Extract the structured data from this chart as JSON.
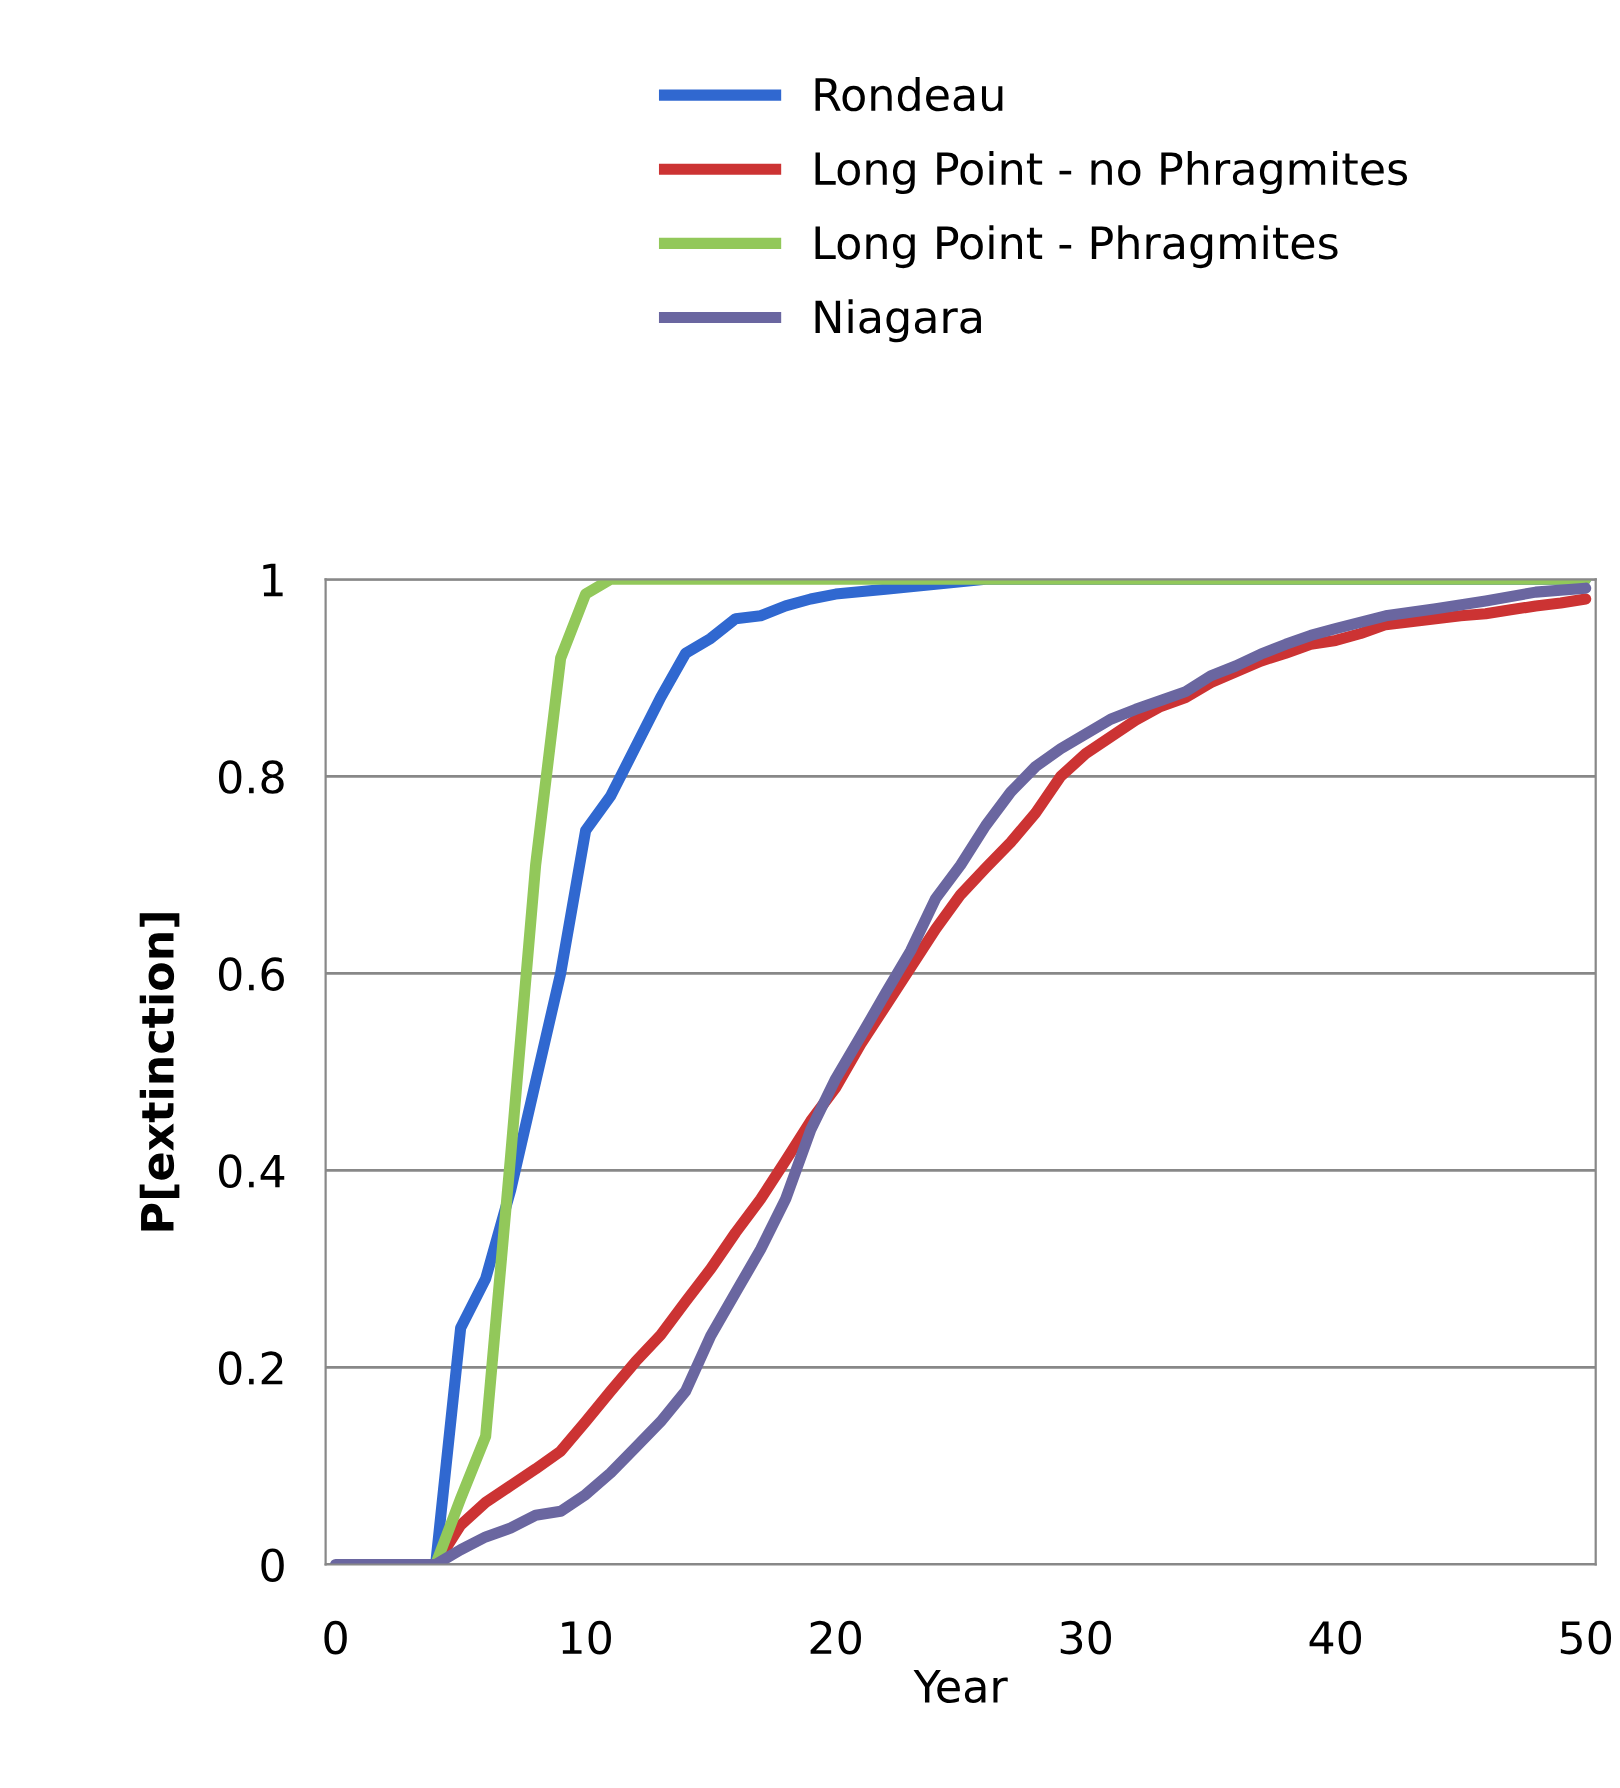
{
  "chart_data": {
    "type": "line",
    "xlabel": "Year",
    "ylabel": "P[extinction]",
    "xlim": [
      -0.4,
      50.4
    ],
    "xticks": [
      0,
      10,
      20,
      30,
      40,
      50
    ],
    "ylim": [
      0,
      1
    ],
    "yticks": [
      0,
      0.2,
      0.4,
      0.6,
      0.8,
      1
    ],
    "grid": "y",
    "legend": "top",
    "marker": "none",
    "line_style": "solid",
    "series": [
      {
        "name": "Rondeau",
        "color": "#3068d0",
        "x": [
          4,
          5,
          6,
          7,
          8,
          9,
          10,
          11,
          12,
          13,
          14,
          15,
          16,
          17,
          18,
          19,
          20,
          22,
          24,
          26,
          50
        ],
        "values": [
          0,
          0.24,
          0.29,
          0.38,
          0.49,
          0.6,
          0.745,
          0.78,
          0.83,
          0.88,
          0.925,
          0.94,
          0.96,
          0.963,
          0.973,
          0.98,
          0.985,
          0.99,
          0.995,
          1,
          1
        ]
      },
      {
        "name": "Long Point - no Phragmites",
        "color": "#cc3333",
        "x": [
          4,
          5,
          6,
          7,
          8,
          9,
          10,
          11,
          12,
          13,
          14,
          15,
          16,
          17,
          18,
          19,
          20,
          21,
          22,
          23,
          24,
          25,
          26,
          27,
          28,
          29,
          30,
          31,
          32,
          33,
          34,
          35,
          36,
          37,
          38,
          39,
          40,
          41,
          42,
          43,
          44,
          45,
          46,
          47,
          48,
          49,
          50
        ],
        "values": [
          0,
          0.04,
          0.063,
          0.08,
          0.097,
          0.115,
          0.145,
          0.176,
          0.206,
          0.233,
          0.267,
          0.3,
          0.337,
          0.371,
          0.41,
          0.45,
          0.484,
          0.528,
          0.567,
          0.606,
          0.645,
          0.68,
          0.707,
          0.733,
          0.763,
          0.8,
          0.823,
          0.84,
          0.857,
          0.871,
          0.88,
          0.895,
          0.906,
          0.917,
          0.925,
          0.934,
          0.938,
          0.945,
          0.954,
          0.957,
          0.96,
          0.963,
          0.965,
          0.969,
          0.973,
          0.976,
          0.98
        ]
      },
      {
        "name": "Long Point - Phragmites",
        "color": "#92c85a",
        "x": [
          4,
          5,
          6,
          7,
          8,
          9,
          10,
          11,
          50
        ],
        "values": [
          0,
          0.067,
          0.13,
          0.415,
          0.71,
          0.92,
          0.985,
          1,
          1
        ]
      },
      {
        "name": "Niagara",
        "color": "#6a66a0",
        "x": [
          0,
          1,
          2,
          3,
          4,
          5,
          6,
          7,
          8,
          9,
          10,
          11,
          12,
          13,
          14,
          15,
          16,
          17,
          18,
          19,
          20,
          21,
          22,
          23,
          24,
          25,
          26,
          27,
          28,
          29,
          30,
          31,
          32,
          33,
          34,
          35,
          36,
          37,
          38,
          39,
          40,
          42,
          44,
          46,
          48,
          50
        ],
        "values": [
          0,
          0,
          0,
          0,
          0,
          0.015,
          0.028,
          0.037,
          0.05,
          0.054,
          0.071,
          0.093,
          0.119,
          0.145,
          0.176,
          0.232,
          0.276,
          0.32,
          0.371,
          0.441,
          0.493,
          0.536,
          0.58,
          0.623,
          0.676,
          0.71,
          0.75,
          0.784,
          0.81,
          0.828,
          0.843,
          0.858,
          0.868,
          0.877,
          0.886,
          0.902,
          0.912,
          0.924,
          0.934,
          0.943,
          0.95,
          0.963,
          0.97,
          0.978,
          0.987,
          0.991
        ]
      }
    ]
  }
}
